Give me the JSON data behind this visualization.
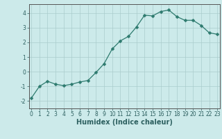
{
  "x": [
    0,
    1,
    2,
    3,
    4,
    5,
    6,
    7,
    8,
    9,
    10,
    11,
    12,
    13,
    14,
    15,
    16,
    17,
    18,
    19,
    20,
    21,
    22,
    23
  ],
  "y": [
    -1.8,
    -1.0,
    -0.65,
    -0.85,
    -0.95,
    -0.85,
    -0.7,
    -0.6,
    -0.05,
    0.55,
    1.55,
    2.1,
    2.4,
    3.05,
    3.85,
    3.8,
    4.1,
    4.2,
    3.75,
    3.5,
    3.5,
    3.15,
    2.65,
    2.55
  ],
  "xlabel": "Humidex (Indice chaleur)",
  "line_color": "#2d7a6e",
  "marker": "D",
  "marker_size": 2.5,
  "bg_color": "#cceaea",
  "grid_color": "#aacccc",
  "ylim": [
    -2.5,
    4.6
  ],
  "xlim": [
    -0.3,
    23.3
  ],
  "yticks": [
    -2,
    -1,
    0,
    1,
    2,
    3,
    4
  ],
  "xticks": [
    0,
    1,
    2,
    3,
    4,
    5,
    6,
    7,
    8,
    9,
    10,
    11,
    12,
    13,
    14,
    15,
    16,
    17,
    18,
    19,
    20,
    21,
    22,
    23
  ],
  "xtick_labels": [
    "0",
    "1",
    "2",
    "3",
    "4",
    "5",
    "6",
    "7",
    "8",
    "9",
    "10",
    "11",
    "12",
    "13",
    "14",
    "15",
    "16",
    "17",
    "18",
    "19",
    "20",
    "21",
    "22",
    "23"
  ],
  "tick_fontsize": 5.5,
  "xlabel_fontsize": 7,
  "tick_color": "#2d6060",
  "label_color": "#2d6060"
}
